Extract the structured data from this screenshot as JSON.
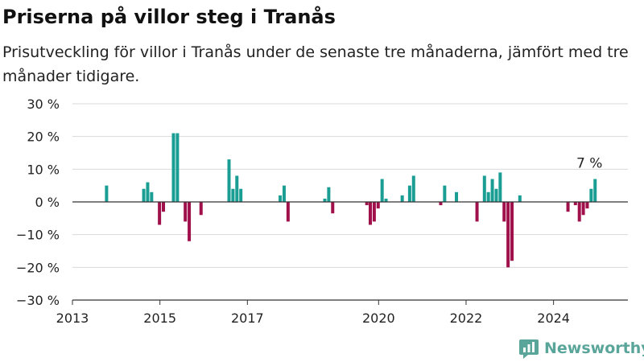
{
  "header": {
    "title": "Priserna på villor steg i Tranås",
    "subtitle": "Prisutveckling för villor i Tranås under de senaste tre månaderna, jämfört med tre månader tidigare."
  },
  "brand": {
    "name": "Newsworthy",
    "color": "#5aa59a"
  },
  "chart_data": {
    "type": "bar",
    "title": "Priserna på villor steg i Tranås",
    "xlabel": "",
    "ylabel": "",
    "xlim": [
      2013.0,
      2025.7
    ],
    "ylim": [
      -30,
      30
    ],
    "yticks": [
      30,
      20,
      10,
      0,
      -10,
      -20,
      -30
    ],
    "ytick_labels": [
      "30 %",
      "20 %",
      "10 %",
      "0 %",
      "−10 %",
      "−20 %",
      "−30 %"
    ],
    "xticks": [
      2013,
      2015,
      2017,
      2020,
      2022,
      2024
    ],
    "xtick_labels": [
      "2013",
      "2015",
      "2017",
      "2020",
      "2022",
      "2024"
    ],
    "grid": true,
    "positive_color": "#1a9e94",
    "negative_color": "#a0104a",
    "annotation": {
      "text": "7 %",
      "x": 2024.82,
      "y": 7
    },
    "x": [
      2013.78,
      2014.63,
      2014.72,
      2014.81,
      2014.99,
      2015.08,
      2015.31,
      2015.4,
      2015.58,
      2015.67,
      2015.94,
      2016.58,
      2016.67,
      2016.76,
      2016.85,
      2017.75,
      2017.84,
      2017.93,
      2018.77,
      2018.86,
      2018.95,
      2019.73,
      2019.81,
      2019.9,
      2019.99,
      2020.08,
      2020.17,
      2020.54,
      2020.71,
      2020.8,
      2021.42,
      2021.51,
      2021.78,
      2022.25,
      2022.42,
      2022.51,
      2022.6,
      2022.69,
      2022.78,
      2022.87,
      2022.96,
      2023.05,
      2023.23,
      2024.33,
      2024.5,
      2024.59,
      2024.68,
      2024.77,
      2024.86,
      2024.95
    ],
    "values": [
      5,
      4,
      6,
      3,
      -7,
      -3,
      21,
      21,
      -6,
      -12,
      -4,
      13,
      4,
      8,
      4,
      2,
      5,
      -6,
      1,
      4.5,
      -3.5,
      -1,
      -7,
      -6,
      -2,
      7,
      1,
      2,
      5,
      8,
      -1,
      5,
      3,
      -6,
      8,
      3,
      7,
      4,
      9,
      -6,
      -20,
      -18,
      2,
      -3,
      -1,
      -6,
      -4,
      -2,
      4,
      7
    ]
  }
}
